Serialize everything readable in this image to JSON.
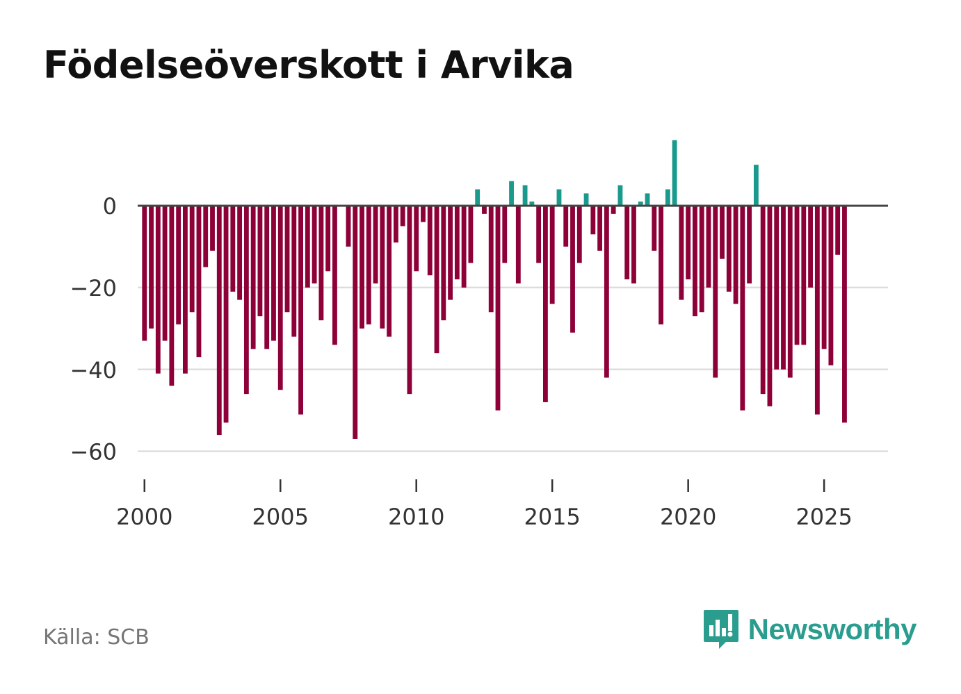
{
  "header": {
    "title": "Födelseöverskott i Arvika"
  },
  "footer": {
    "source": "Källa: SCB",
    "brand": "Newsworthy"
  },
  "colors": {
    "positive": "#1a9a8c",
    "negative": "#8e0038",
    "axis": "#444444",
    "grid": "#dddddd",
    "brand": "#2a9d8f"
  },
  "chart_data": {
    "type": "bar",
    "title": "Födelseöverskott i Arvika",
    "xlabel": "",
    "ylabel": "",
    "ylim": [
      -66,
      18
    ],
    "xlim": [
      1999.75,
      2027.35
    ],
    "yticks": [
      0,
      -20,
      -40,
      -60
    ],
    "ytick_labels": [
      "0",
      "−20",
      "−40",
      "−60"
    ],
    "xticks": [
      2000,
      2005,
      2010,
      2015,
      2020,
      2025
    ],
    "xtick_labels": [
      "2000",
      "2005",
      "2010",
      "2015",
      "2020",
      "2025"
    ],
    "grid": true,
    "legend": "none",
    "start": {
      "year": 2000,
      "quarter": 1
    },
    "frequency": "quarterly",
    "values": [
      -33,
      -30,
      -41,
      -33,
      -44,
      -29,
      -41,
      -26,
      -37,
      -15,
      -11,
      -56,
      -53,
      -21,
      -23,
      -46,
      -35,
      -27,
      -35,
      -33,
      -45,
      -26,
      -32,
      -51,
      -20,
      -19,
      -28,
      -16,
      -34,
      0,
      -10,
      -57,
      -30,
      -29,
      -19,
      -30,
      -32,
      -9,
      -5,
      -46,
      -16,
      -4,
      -17,
      -36,
      -28,
      -23,
      -18,
      -20,
      -14,
      4,
      -2,
      -26,
      -50,
      -14,
      6,
      -19,
      5,
      1,
      -14,
      -48,
      -24,
      4,
      -10,
      -31,
      -14,
      3,
      -7,
      -11,
      -42,
      -2,
      5,
      -18,
      -19,
      1,
      3,
      -11,
      -29,
      4,
      16,
      -23,
      -18,
      -27,
      -26,
      -20,
      -42,
      -13,
      -21,
      -24,
      -50,
      -19,
      10,
      -46,
      -49,
      -40,
      -40,
      -42,
      -34,
      -34,
      -20,
      -51,
      -35,
      -39,
      -12,
      -53
    ]
  }
}
